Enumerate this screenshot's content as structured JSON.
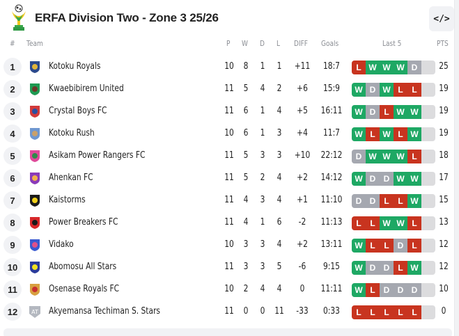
{
  "header": {
    "title": "ERFA Division Two - Zone 3 25/26",
    "logo_icon": "trophy-icon",
    "embed_button_label": "</>"
  },
  "columns": {
    "rank": "#",
    "team": "Team",
    "played": "P",
    "won": "W",
    "drawn": "D",
    "lost": "L",
    "diff": "DIFF",
    "goals": "Goals",
    "last5": "Last 5",
    "pts": "PTS"
  },
  "colors": {
    "win": "#1ea864",
    "loss": "#c8341f",
    "draw": "#a5a8b0",
    "empty": "#dcdcde"
  },
  "rows": [
    {
      "rank": "1",
      "team": "Kotoku Royals",
      "crest_color": "#2c4a8c",
      "crest_accent": "#e0b43a",
      "p": "10",
      "w": "8",
      "d": "1",
      "l": "1",
      "diff": "+11",
      "goals": "18:7",
      "form": [
        "L",
        "W",
        "W",
        "W",
        "D"
      ],
      "pts": "25"
    },
    {
      "rank": "2",
      "team": "Kwaebibirem United",
      "crest_color": "#1e9a52",
      "crest_accent": "#6b3a2a",
      "p": "11",
      "w": "5",
      "d": "4",
      "l": "2",
      "diff": "+6",
      "goals": "15:9",
      "form": [
        "W",
        "D",
        "W",
        "L",
        "L"
      ],
      "pts": "19"
    },
    {
      "rank": "3",
      "team": "Crystal Boys FC",
      "crest_color": "#d23a3a",
      "crest_accent": "#2b4fa0",
      "p": "11",
      "w": "6",
      "d": "1",
      "l": "4",
      "diff": "+5",
      "goals": "16:11",
      "form": [
        "W",
        "D",
        "L",
        "W",
        "W"
      ],
      "pts": "19"
    },
    {
      "rank": "4",
      "team": "Kotoku Rush",
      "crest_color": "#6f97d0",
      "crest_accent": "#c9a06a",
      "p": "10",
      "w": "6",
      "d": "1",
      "l": "3",
      "diff": "+4",
      "goals": "11:7",
      "form": [
        "W",
        "L",
        "W",
        "L",
        "W"
      ],
      "pts": "19"
    },
    {
      "rank": "5",
      "team": "Asikam Power Rangers FC",
      "crest_color": "#e04a9a",
      "crest_accent": "#2f8a4a",
      "p": "11",
      "w": "5",
      "d": "3",
      "l": "3",
      "diff": "+10",
      "goals": "22:12",
      "form": [
        "D",
        "W",
        "W",
        "W",
        "L"
      ],
      "pts": "18"
    },
    {
      "rank": "6",
      "team": "Ahenkan FC",
      "crest_color": "#8a3ab8",
      "crest_accent": "#f2b04a",
      "p": "11",
      "w": "5",
      "d": "2",
      "l": "4",
      "diff": "+2",
      "goals": "14:12",
      "form": [
        "W",
        "D",
        "D",
        "W",
        "W"
      ],
      "pts": "17"
    },
    {
      "rank": "7",
      "team": "Kaistorms",
      "crest_color": "#1b1b1b",
      "crest_accent": "#f2d21a",
      "p": "11",
      "w": "4",
      "d": "3",
      "l": "4",
      "diff": "+1",
      "goals": "11:10",
      "form": [
        "D",
        "D",
        "L",
        "L",
        "W"
      ],
      "pts": "15"
    },
    {
      "rank": "8",
      "team": "Power Breakers FC",
      "crest_color": "#d8282a",
      "crest_accent": "#1b1b1b",
      "p": "11",
      "w": "4",
      "d": "1",
      "l": "6",
      "diff": "-2",
      "goals": "11:13",
      "form": [
        "L",
        "L",
        "W",
        "W",
        "L"
      ],
      "pts": "13"
    },
    {
      "rank": "9",
      "team": "Vidako",
      "crest_color": "#3a5ad0",
      "crest_accent": "#e0508a",
      "p": "10",
      "w": "3",
      "d": "3",
      "l": "4",
      "diff": "+2",
      "goals": "13:11",
      "form": [
        "W",
        "L",
        "L",
        "D",
        "L"
      ],
      "pts": "12"
    },
    {
      "rank": "10",
      "team": "Abomosu All Stars",
      "crest_color": "#2a3a9a",
      "crest_accent": "#f0e020",
      "p": "11",
      "w": "3",
      "d": "3",
      "l": "5",
      "diff": "-6",
      "goals": "9:15",
      "form": [
        "W",
        "D",
        "D",
        "L",
        "W"
      ],
      "pts": "12"
    },
    {
      "rank": "11",
      "team": "Osenase Royals FC",
      "crest_color": "#d8a040",
      "crest_accent": "#c83030",
      "p": "10",
      "w": "2",
      "d": "4",
      "l": "4",
      "diff": "0",
      "goals": "11:11",
      "form": [
        "W",
        "L",
        "D",
        "D",
        "D"
      ],
      "pts": "10"
    },
    {
      "rank": "12",
      "team": "Akyemansa Techiman S. Stars",
      "crest_color": "#b4b8c0",
      "crest_text": "AT",
      "p": "11",
      "w": "0",
      "d": "0",
      "l": "11",
      "diff": "-33",
      "goals": "0:33",
      "form": [
        "L",
        "L",
        "L",
        "L",
        "L"
      ],
      "pts": "0"
    }
  ]
}
